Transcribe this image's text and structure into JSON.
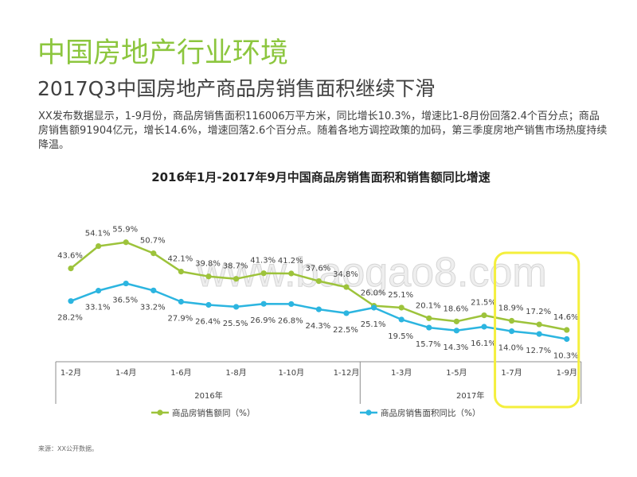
{
  "slide": {
    "title": "中国房地产行业环境",
    "subtitle": "2017Q3中国房地产商品房销售面积继续下滑",
    "intro": "XX发布数据显示，1-9月份，商品房销售面积116006万平方米，同比增长10.3%，增速比1-8月份回落2.4个百分点；商品房销售额91904亿元，增长14.6%，增速回落2.6个百分点。随着各地方调控政策的加码，第三季度房地产销售市场热度持续降温。",
    "source": "来源：XX公开数据。",
    "watermark": "www.baogao8.com"
  },
  "colors": {
    "title": "#8CC63E",
    "highlight": "#F4EF3C"
  },
  "chart_data": {
    "type": "line",
    "title": "2016年1月-2017年9月中国商品房销售面积和销售额同比增速",
    "xlabel": "",
    "ylabel": "",
    "categories": [
      "1-2月",
      "",
      "1-4月",
      "",
      "1-6月",
      "",
      "1-8月",
      "",
      "1-10月",
      "",
      "1-12月",
      "",
      "1-3月",
      "",
      "1-5月",
      "",
      "1-7月",
      "",
      "1-9月"
    ],
    "groups": [
      {
        "label": "2016年",
        "start": 0,
        "end": 10
      },
      {
        "label": "2017年",
        "start": 11,
        "end": 18
      }
    ],
    "value_suffix": "%",
    "series": [
      {
        "name": "商品房销售额同（%）",
        "color": "#9DC33B",
        "label_position": "above",
        "values": [
          43.6,
          54.1,
          55.9,
          50.7,
          42.1,
          39.8,
          38.7,
          41.3,
          41.2,
          37.6,
          34.8,
          26.0,
          25.1,
          20.1,
          18.6,
          21.5,
          18.9,
          17.2,
          14.6
        ]
      },
      {
        "name": "商品房销售面积同比（%）",
        "color": "#2CB5E0",
        "label_position": "below",
        "values": [
          28.2,
          33.1,
          36.5,
          33.2,
          27.9,
          26.4,
          25.5,
          26.9,
          26.8,
          24.3,
          22.5,
          25.1,
          19.5,
          15.7,
          14.3,
          16.1,
          14.0,
          12.7,
          10.3
        ]
      }
    ],
    "highlight": {
      "from_index": 16,
      "to_index": 18
    },
    "legend_position": "bottom",
    "grid": false,
    "y_axis_visible": false
  }
}
